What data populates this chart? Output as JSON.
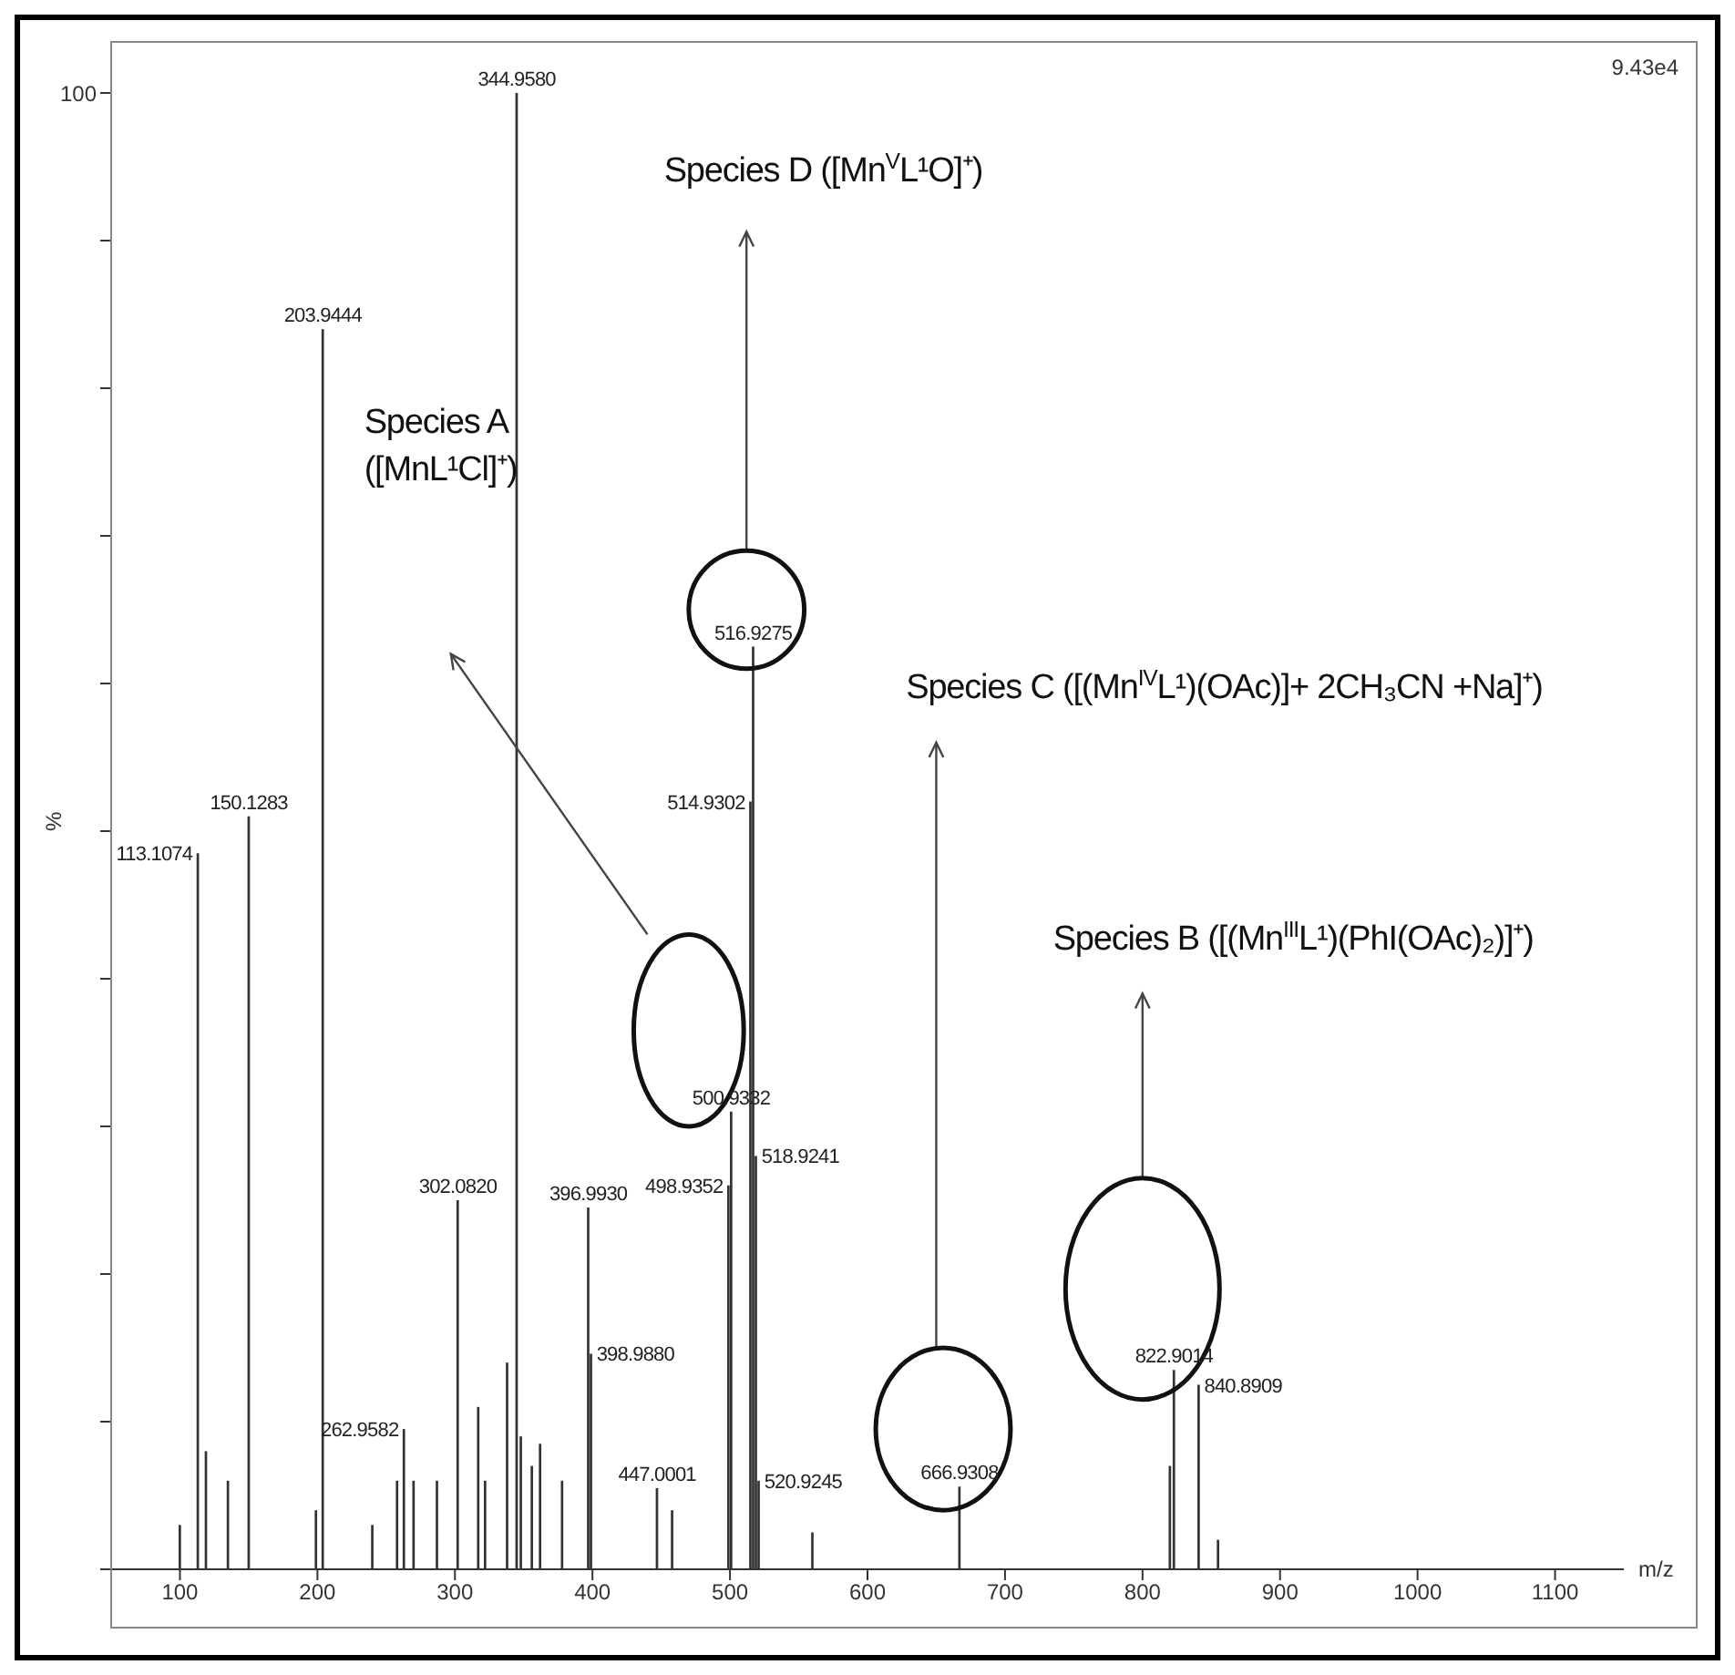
{
  "chart_data": {
    "type": "bar",
    "ylabel": "%",
    "xlabel": "m/z",
    "color": "#333333",
    "xlim": [
      50,
      1150
    ],
    "xticks": [
      100,
      200,
      300,
      400,
      500,
      600,
      700,
      800,
      900,
      1000,
      1100
    ],
    "ylim": [
      0,
      100
    ],
    "yticks": [
      0,
      {
        "value": 10,
        "label": null
      },
      {
        "value": 20,
        "label": null
      },
      {
        "value": 30,
        "label": null
      },
      {
        "value": 40,
        "label": null
      },
      {
        "value": 50,
        "label": null
      },
      {
        "value": 60,
        "label": null
      },
      {
        "value": 70,
        "label": null
      },
      {
        "value": 80,
        "label": null
      },
      {
        "value": 90,
        "label": null
      },
      100
    ],
    "x": [
      100,
      113.1074,
      119,
      135,
      150.1283,
      199,
      203.9444,
      240,
      258,
      262.9582,
      270,
      287,
      302.082,
      317,
      322,
      338,
      344.958,
      348,
      356,
      362,
      378,
      396.993,
      398.988,
      447.0001,
      458,
      498.9352,
      500.9332,
      514.9302,
      516.9275,
      518.9241,
      520.9245,
      560,
      666.9308,
      820,
      822.9014,
      840.8909,
      855
    ],
    "values": [
      3,
      48.5,
      8,
      6,
      51,
      4,
      84,
      3,
      6,
      9.5,
      6,
      6,
      25,
      11,
      6,
      14,
      100,
      9,
      7,
      8.5,
      6,
      24.5,
      14.6,
      5.5,
      4,
      26,
      31,
      52,
      62.5,
      28,
      6,
      2.5,
      5.6,
      7,
      13.5,
      12.5,
      2
    ],
    "annotations": [
      "Species D ([Mn$^{V}$L¹O]⁺)",
      "Species A ([MnL¹Cl]⁺)",
      "Species C ([(Mn$^{IV}$L¹)(OAc)]+ 2CH₃CN +Na]⁺)",
      "Species B ([(Mn$^{III}$L¹)(PhI(OAc)₂)]⁺)",
      "9.43e4",
      {
        "text": "113.1074",
        "x": 113.1074,
        "y": 48.5
      },
      {
        "text": "150.1283",
        "x": 150.1283,
        "y": 51
      },
      {
        "text": "203.9444",
        "x": 203.9444,
        "y": 84
      },
      {
        "text": "262.9582",
        "x": 262.9582,
        "y": 9.5
      },
      {
        "text": "302.0820",
        "x": 302.082,
        "y": 25
      },
      {
        "text": "344.9580",
        "x": 344.958,
        "y": 100
      },
      {
        "text": "396.9930",
        "x": 396.993,
        "y": 24.5
      },
      {
        "text": "398.9880",
        "x": 398.988,
        "y": 14.6
      },
      {
        "text": "447.0001",
        "x": 447.0001,
        "y": 5.5
      },
      {
        "text": "498.9352",
        "x": 498.9352,
        "y": 26
      },
      {
        "text": "500.9332",
        "x": 500.9332,
        "y": 31
      },
      {
        "text": "514.9302",
        "x": 514.9302,
        "y": 52
      },
      {
        "text": "516.9275",
        "x": 516.9275,
        "y": 62.5
      },
      {
        "text": "518.9241",
        "x": 518.9241,
        "y": 28
      },
      {
        "text": "520.9245",
        "x": 520.9245,
        "y": 6
      },
      {
        "text": "666.9308",
        "x": 666.9308,
        "y": 5.6
      },
      {
        "text": "822.9014",
        "x": 822.9014,
        "y": 13.5
      },
      {
        "text": "840.8909",
        "x": 840.8909,
        "y": 12.5
      }
    ]
  }
}
